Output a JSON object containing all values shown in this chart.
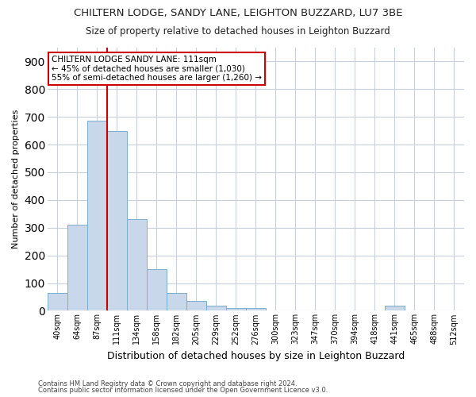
{
  "title": "CHILTERN LODGE, SANDY LANE, LEIGHTON BUZZARD, LU7 3BE",
  "subtitle": "Size of property relative to detached houses in Leighton Buzzard",
  "xlabel": "Distribution of detached houses by size in Leighton Buzzard",
  "ylabel": "Number of detached properties",
  "bar_labels": [
    "40sqm",
    "64sqm",
    "87sqm",
    "111sqm",
    "134sqm",
    "158sqm",
    "182sqm",
    "205sqm",
    "229sqm",
    "252sqm",
    "276sqm",
    "300sqm",
    "323sqm",
    "347sqm",
    "370sqm",
    "394sqm",
    "418sqm",
    "441sqm",
    "465sqm",
    "488sqm",
    "512sqm"
  ],
  "bar_values": [
    63,
    310,
    685,
    650,
    330,
    150,
    63,
    35,
    18,
    10,
    10,
    0,
    0,
    0,
    0,
    0,
    0,
    18,
    0,
    0,
    0
  ],
  "bar_color": "#c8d8ea",
  "bar_edgecolor": "#7aaed0",
  "highlight_color": "#cc0000",
  "ylim": [
    0,
    950
  ],
  "yticks": [
    0,
    100,
    200,
    300,
    400,
    500,
    600,
    700,
    800,
    900
  ],
  "annotation_box_text": "CHILTERN LODGE SANDY LANE: 111sqm\n← 45% of detached houses are smaller (1,030)\n55% of semi-detached houses are larger (1,260) →",
  "vline_x_index": 3,
  "footer_line1": "Contains HM Land Registry data © Crown copyright and database right 2024.",
  "footer_line2": "Contains public sector information licensed under the Open Government Licence v3.0.",
  "bg_color": "#ffffff",
  "grid_color": "#c8d0dc"
}
